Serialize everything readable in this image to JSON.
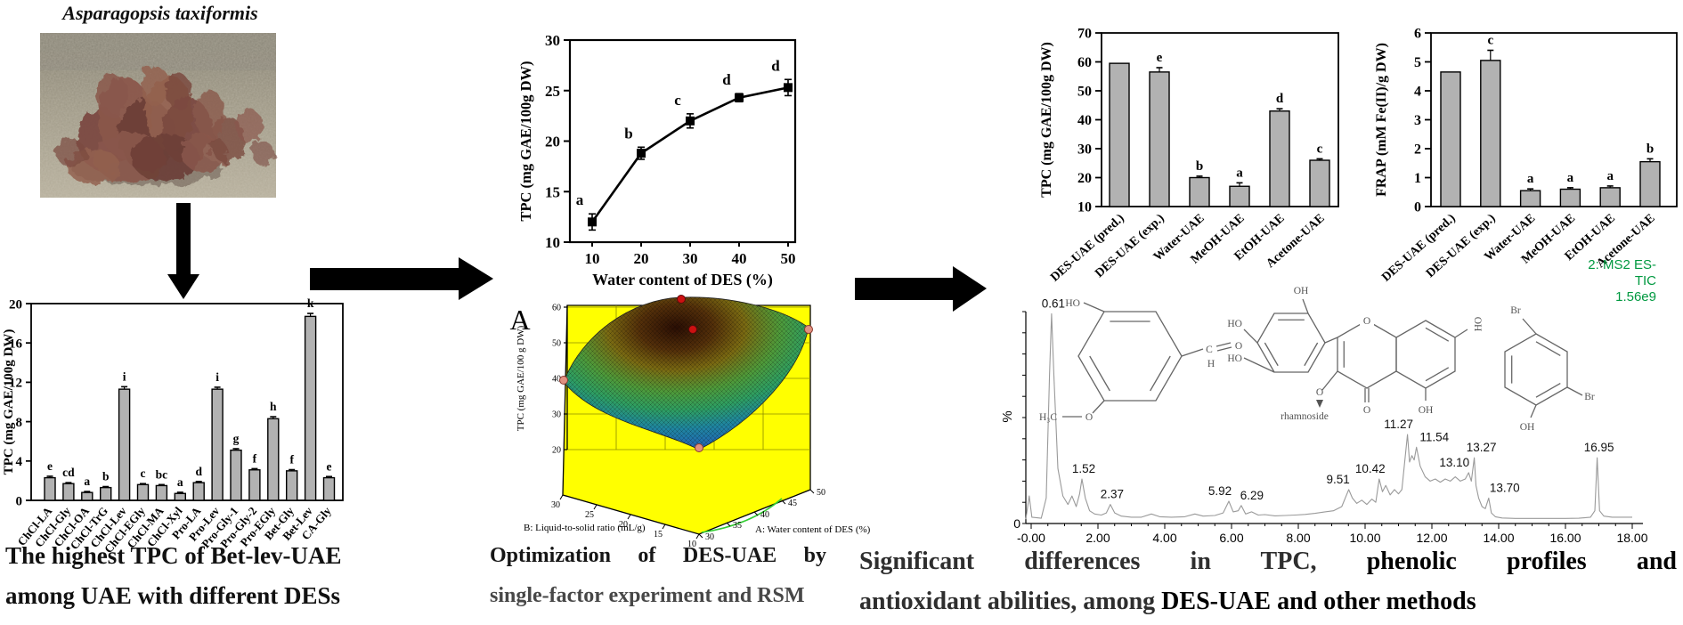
{
  "left": {
    "species_title": "Asparagopsis taxiformis",
    "caption_line1": "The highest TPC of Bet-lev-UAE",
    "caption_line2": "among UAE with different DESs",
    "bar_chart": {
      "type": "bar",
      "ylabel": "TPC (mg GAE/100g DW)",
      "ylim": [
        0,
        20
      ],
      "yticks": [
        0,
        4,
        8,
        12,
        16,
        20
      ],
      "categories": [
        "ChCl-LA",
        "ChCl-Gly",
        "ChCl-OA",
        "ChCl-TrG",
        "ChCl-Lev",
        "ChCl-EGly",
        "ChCl-MA",
        "ChCl-Xyl",
        "Pro-LA",
        "Pro-Lev",
        "Pro-Gly-1",
        "Pro-Gly-2",
        "Pro-EGly",
        "Bet-Gly",
        "Bet-Lev",
        "CA-Gly"
      ],
      "values": [
        2.3,
        1.7,
        0.8,
        1.3,
        11.3,
        1.6,
        1.5,
        0.7,
        1.8,
        11.3,
        5.1,
        3.1,
        8.3,
        3.0,
        18.7,
        2.3
      ],
      "errors": [
        0.15,
        0.1,
        0.1,
        0.1,
        0.25,
        0.1,
        0.1,
        0.12,
        0.12,
        0.2,
        0.15,
        0.12,
        0.2,
        0.12,
        0.3,
        0.12
      ],
      "sig_letters": [
        "e",
        "cd",
        "a",
        "b",
        "i",
        "c",
        "bc",
        "a",
        "d",
        "i",
        "g",
        "f",
        "h",
        "f",
        "k",
        "e"
      ]
    }
  },
  "middle": {
    "line_chart": {
      "type": "line",
      "xlabel": "Water content of DES (%)",
      "ylabel": "TPC (mg GAE/100g DW)",
      "xticks": [
        10,
        20,
        30,
        40,
        50
      ],
      "yticks": [
        10,
        15,
        20,
        25,
        30
      ],
      "ylim": [
        10,
        30
      ],
      "x": [
        10,
        20,
        30,
        40,
        50
      ],
      "y": [
        12.0,
        18.8,
        22.0,
        24.3,
        25.3
      ],
      "errors": [
        0.8,
        0.6,
        0.7,
        0.4,
        0.8
      ],
      "sig_letters": [
        "a",
        "b",
        "c",
        "d",
        "d"
      ]
    },
    "surface_plot": {
      "type": "3d-surface",
      "panel_label": "A",
      "zlabel": "TPC (mg GAE/100 g DW)",
      "zticks": [
        60,
        50,
        40,
        30,
        20
      ],
      "b_axis_label": "B: Liquid-to-solid ratio (mL/g)",
      "b_ticks": [
        30,
        25,
        20,
        15,
        10
      ],
      "a_axis_label": "A: Water content of DES (%)",
      "a_ticks": [
        30,
        35,
        40,
        45,
        50
      ]
    },
    "caption_line1": "Optimization of DES-UAE by",
    "caption_line2": "single-factor experiment and RSM"
  },
  "right": {
    "tpc_chart": {
      "type": "bar",
      "ylabel": "TPC (mg GAE/100g DW)",
      "ylim": [
        10,
        70
      ],
      "yticks": [
        10,
        20,
        30,
        40,
        50,
        60,
        70
      ],
      "categories": [
        "DES-UAE (pred.)",
        "DES-UAE (exp.)",
        "Water-UAE",
        "MeOH-UAE",
        "EtOH-UAE",
        "Acetone-UAE"
      ],
      "values": [
        59.5,
        56.5,
        20,
        17,
        43,
        26
      ],
      "errors": [
        0,
        1.5,
        0.5,
        1.2,
        0.8,
        0.5
      ],
      "sig_letters": [
        "",
        "e",
        "b",
        "a",
        "d",
        "c"
      ]
    },
    "frap_chart": {
      "type": "bar",
      "ylabel": "FRAP (mM Fe(II)/g DW)",
      "ylim": [
        0,
        6
      ],
      "yticks": [
        0,
        1,
        2,
        3,
        4,
        5,
        6
      ],
      "categories": [
        "DES-UAE (pred.)",
        "DES-UAE (exp.)",
        "Water-UAE",
        "MeOH-UAE",
        "EtOH-UAE",
        "Acetone-UAE"
      ],
      "values": [
        4.65,
        5.05,
        0.55,
        0.6,
        0.65,
        1.55
      ],
      "errors": [
        0,
        0.35,
        0.06,
        0.05,
        0.06,
        0.1
      ],
      "sig_letters": [
        "",
        "c",
        "a",
        "a",
        "a",
        "b"
      ]
    },
    "chromatogram": {
      "type": "line",
      "ylabel": "%",
      "origin_label": "0",
      "annotation_lines": [
        "2: MS2 ES-",
        "TIC",
        "1.56e9"
      ],
      "annotation_color": "#009940",
      "xtick_labels": [
        "-0.00",
        "2.00",
        "4.00",
        "6.00",
        "8.00",
        "10.00",
        "12.00",
        "14.00",
        "16.00",
        "18.00"
      ],
      "peaks": [
        {
          "label": "0.61",
          "t": 0.61,
          "pct": 99,
          "dx": 2
        },
        {
          "label": "1.52",
          "t": 1.52,
          "pct": 21,
          "dx": 2
        },
        {
          "label": "2.37",
          "t": 2.37,
          "pct": 9,
          "dx": 2
        },
        {
          "label": "5.92",
          "t": 5.92,
          "pct": 10.5,
          "dx": -10
        },
        {
          "label": "6.29",
          "t": 6.29,
          "pct": 8.5,
          "dx": 12
        },
        {
          "label": "9.51",
          "t": 9.51,
          "pct": 16,
          "dx": -12
        },
        {
          "label": "10.42",
          "t": 10.42,
          "pct": 21,
          "dx": -10
        },
        {
          "label": "11.27",
          "t": 11.27,
          "pct": 42,
          "dx": -10
        },
        {
          "label": "11.54",
          "t": 11.54,
          "pct": 36,
          "dx": 20
        },
        {
          "label": "13.10",
          "t": 13.1,
          "pct": 24,
          "dx": -16
        },
        {
          "label": "13.27",
          "t": 13.27,
          "pct": 31,
          "dx": 8
        },
        {
          "label": "13.70",
          "t": 13.7,
          "pct": 12,
          "dx": 18
        },
        {
          "label": "16.95",
          "t": 16.95,
          "pct": 31,
          "dx": 2
        }
      ],
      "trace": [
        [
          -0.16,
          2
        ],
        [
          -0.06,
          13
        ],
        [
          0.02,
          3
        ],
        [
          0.3,
          2.5
        ],
        [
          0.45,
          12
        ],
        [
          0.55,
          70
        ],
        [
          0.61,
          99
        ],
        [
          0.68,
          70
        ],
        [
          0.8,
          26
        ],
        [
          0.95,
          13
        ],
        [
          1.1,
          9
        ],
        [
          1.22,
          13
        ],
        [
          1.35,
          8
        ],
        [
          1.45,
          14
        ],
        [
          1.52,
          21
        ],
        [
          1.62,
          12
        ],
        [
          1.75,
          6
        ],
        [
          1.9,
          4.5
        ],
        [
          2.1,
          4
        ],
        [
          2.25,
          5
        ],
        [
          2.37,
          9
        ],
        [
          2.5,
          5
        ],
        [
          2.7,
          3.5
        ],
        [
          3,
          3
        ],
        [
          3.3,
          3
        ],
        [
          3.6,
          4.5
        ],
        [
          3.85,
          3.2
        ],
        [
          4.2,
          3
        ],
        [
          4.6,
          3.2
        ],
        [
          4.9,
          4.5
        ],
        [
          5.15,
          3.5
        ],
        [
          5.5,
          3.8
        ],
        [
          5.75,
          5
        ],
        [
          5.92,
          10.5
        ],
        [
          6.05,
          5.5
        ],
        [
          6.2,
          6
        ],
        [
          6.29,
          8.5
        ],
        [
          6.42,
          4.5
        ],
        [
          6.6,
          5.5
        ],
        [
          6.8,
          4
        ],
        [
          7,
          4.2
        ],
        [
          7.3,
          3.6
        ],
        [
          7.6,
          3.8
        ],
        [
          7.9,
          4
        ],
        [
          8.2,
          4.3
        ],
        [
          8.5,
          4.8
        ],
        [
          8.8,
          5.5
        ],
        [
          9.05,
          6
        ],
        [
          9.3,
          8
        ],
        [
          9.51,
          16
        ],
        [
          9.62,
          12
        ],
        [
          9.75,
          9.5
        ],
        [
          9.9,
          11
        ],
        [
          10.05,
          9
        ],
        [
          10.2,
          11.5
        ],
        [
          10.32,
          10
        ],
        [
          10.42,
          21
        ],
        [
          10.52,
          15
        ],
        [
          10.62,
          18
        ],
        [
          10.75,
          13.5
        ],
        [
          10.88,
          16
        ],
        [
          11,
          14
        ],
        [
          11.1,
          16
        ],
        [
          11.27,
          42
        ],
        [
          11.33,
          29
        ],
        [
          11.4,
          32
        ],
        [
          11.47,
          30
        ],
        [
          11.54,
          36
        ],
        [
          11.65,
          27
        ],
        [
          11.8,
          22
        ],
        [
          11.95,
          20
        ],
        [
          12.1,
          21
        ],
        [
          12.25,
          19.5
        ],
        [
          12.4,
          21
        ],
        [
          12.55,
          20
        ],
        [
          12.7,
          22
        ],
        [
          12.85,
          20
        ],
        [
          13,
          21
        ],
        [
          13.1,
          24
        ],
        [
          13.18,
          20
        ],
        [
          13.27,
          31
        ],
        [
          13.32,
          18
        ],
        [
          13.4,
          12
        ],
        [
          13.5,
          8
        ],
        [
          13.6,
          7
        ],
        [
          13.7,
          12
        ],
        [
          13.78,
          5
        ],
        [
          13.9,
          3.2
        ],
        [
          14.1,
          2.6
        ],
        [
          14.5,
          2.4
        ],
        [
          15,
          2.4
        ],
        [
          15.5,
          2.4
        ],
        [
          16,
          2.4
        ],
        [
          16.4,
          2.5
        ],
        [
          16.75,
          3
        ],
        [
          16.88,
          6
        ],
        [
          16.95,
          31
        ],
        [
          17.02,
          6
        ],
        [
          17.15,
          3.5
        ],
        [
          17.4,
          3
        ],
        [
          17.7,
          3
        ],
        [
          18,
          3
        ]
      ]
    },
    "molecules": {
      "m1": {
        "ho": "HO",
        "methyl": "H₃C",
        "ether_o": "O",
        "carbonyl_c": "C",
        "carbonyl_o": "O",
        "carbonyl_h": "H"
      },
      "m2": {
        "oh_top": "OH",
        "ho_1": "HO",
        "ho_2": "HO",
        "ring_o": "O",
        "glyco_o": "O",
        "glycoside": "rhamnoside",
        "carbonyl_o": "O",
        "oh_bottom": "OH",
        "oh_right": "OH"
      },
      "m3": {
        "br_top": "Br",
        "br_side": "Br",
        "oh": "OH"
      }
    },
    "caption": {
      "seg1": "Significant differences in TPC, ",
      "seg2": "phenolic profiles and",
      "seg3": "antioxidant abilities, among ",
      "seg4": "DES-UAE and other methods"
    }
  }
}
